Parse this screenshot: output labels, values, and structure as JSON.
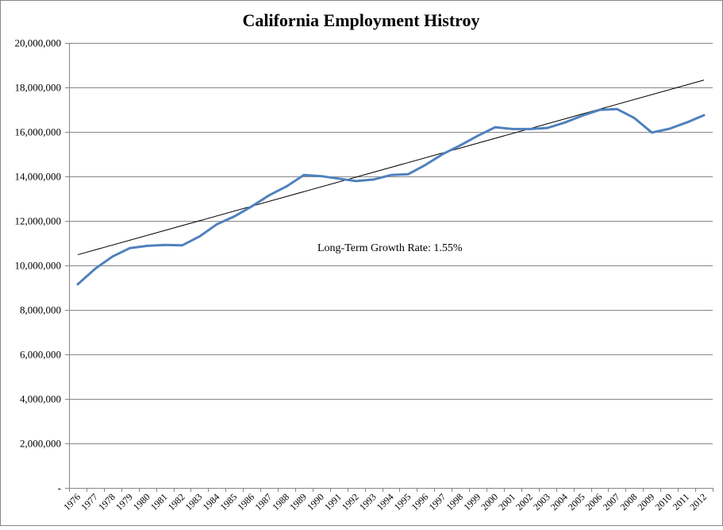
{
  "chart_data": {
    "type": "line",
    "title": "California Employment Histroy",
    "xlabel": "",
    "ylabel": "",
    "x": [
      "1976",
      "1977",
      "1978",
      "1979",
      "1980",
      "1981",
      "1982",
      "1983",
      "1984",
      "1985",
      "1986",
      "1987",
      "1988",
      "1989",
      "1990",
      "1991",
      "1992",
      "1993",
      "1994",
      "1995",
      "1996",
      "1997",
      "1998",
      "1999",
      "2000",
      "2001",
      "2002",
      "2003",
      "2004",
      "2005",
      "2006",
      "2007",
      "2008",
      "2009",
      "2010",
      "2011",
      "2012"
    ],
    "ylim": [
      0,
      20000000
    ],
    "yticks": [
      0,
      2000000,
      4000000,
      6000000,
      8000000,
      10000000,
      12000000,
      14000000,
      16000000,
      18000000,
      20000000
    ],
    "ytick_labels": [
      "-",
      "2,000,000",
      "4,000,000",
      "6,000,000",
      "8,000,000",
      "10,000,000",
      "12,000,000",
      "14,000,000",
      "16,000,000",
      "18,000,000",
      "20,000,000"
    ],
    "grid": true,
    "legend": "none",
    "series": [
      {
        "color": "#4f81bd",
        "values": [
          9150000,
          9850000,
          10400000,
          10780000,
          10880000,
          10920000,
          10900000,
          11300000,
          11850000,
          12200000,
          12650000,
          13150000,
          13550000,
          14060000,
          14010000,
          13900000,
          13790000,
          13860000,
          14060000,
          14100000,
          14520000,
          15010000,
          15400000,
          15830000,
          16210000,
          16130000,
          16130000,
          16180000,
          16420000,
          16730000,
          16990000,
          17030000,
          16620000,
          15970000,
          16140000,
          16420000,
          16750000
        ]
      }
    ],
    "trendline": {
      "color": "#000000",
      "start": 10480000,
      "end": 18330000
    },
    "annotation": "Long-Term Growth Rate: 1.55%"
  }
}
